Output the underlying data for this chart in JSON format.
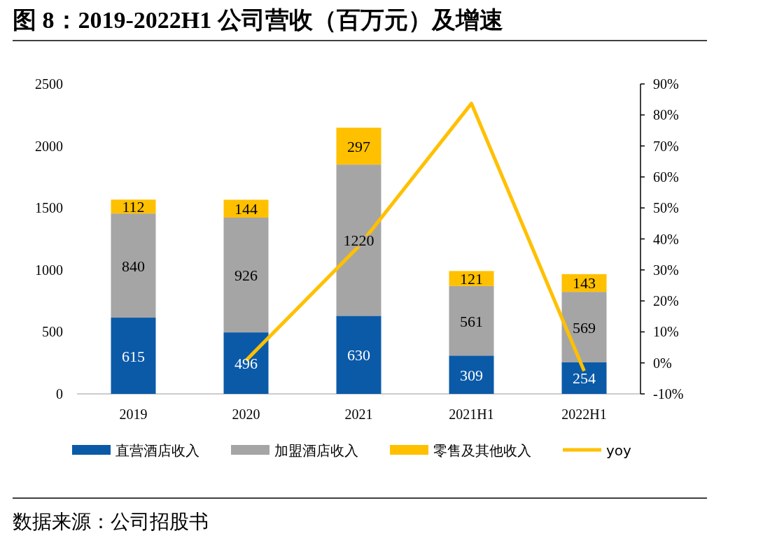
{
  "chart_data": {
    "type": "bar",
    "title": "图 8：2019-2022H1 公司营收（百万元）及增速",
    "categories": [
      "2019",
      "2020",
      "2021",
      "2021H1",
      "2022H1"
    ],
    "stacked": true,
    "legend": "bottom",
    "series": [
      {
        "name": "直营酒店收入",
        "color": "#0b5aa8",
        "values": [
          615,
          496,
          630,
          309,
          254
        ],
        "value_labels": [
          "615",
          "496",
          "630",
          "309",
          "254"
        ]
      },
      {
        "name": "加盟酒店收入",
        "color": "#a5a5a5",
        "values": [
          840,
          926,
          1220,
          561,
          569
        ],
        "value_labels": [
          "840",
          "926",
          "1220",
          "561",
          "569"
        ]
      },
      {
        "name": "零售及其他收入",
        "color": "#ffc000",
        "values": [
          112,
          144,
          297,
          121,
          143
        ],
        "value_labels": [
          "112",
          "144",
          "297",
          "121",
          "143"
        ]
      },
      {
        "name": "yoy",
        "type": "line",
        "axis": "y2",
        "color": "#ffc000",
        "values": [
          null,
          0.8,
          37.6,
          83.7,
          -2.6
        ]
      }
    ],
    "ylim": [
      0,
      2500
    ],
    "yticks": [
      0,
      500,
      1000,
      1500,
      2000,
      2500
    ],
    "y2lim": [
      -10,
      90
    ],
    "y2ticks": [
      {
        "value": -10,
        "label": "-10%"
      },
      {
        "value": 0,
        "label": "0%"
      },
      {
        "value": 10,
        "label": "10%"
      },
      {
        "value": 20,
        "label": "20%"
      },
      {
        "value": 30,
        "label": "30%"
      },
      {
        "value": 40,
        "label": "40%"
      },
      {
        "value": 50,
        "label": "50%"
      },
      {
        "value": 60,
        "label": "60%"
      },
      {
        "value": 70,
        "label": "70%"
      },
      {
        "value": 80,
        "label": "80%"
      },
      {
        "value": 90,
        "label": "90%"
      }
    ],
    "annotations": [
      "数据来源：公司招股书"
    ]
  }
}
